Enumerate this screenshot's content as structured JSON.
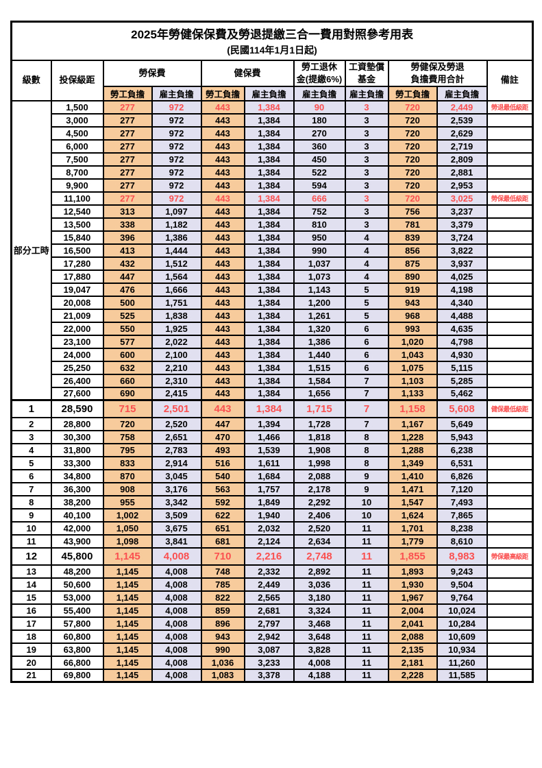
{
  "title": "2025年勞健保保費及勞退提繳三合一費用對照參考用表",
  "subtitle": "(民國114年1月1日起)",
  "columns": {
    "level": "級數",
    "bracket": "投保級距",
    "labor_insurance": "勞保費",
    "health_insurance": "健保費",
    "pension_line1": "勞工退休",
    "pension_line2": "金(提繳6%)",
    "wage_fund_line1": "工資墊償",
    "wage_fund_line2": "基金",
    "total_line1": "勞健保及勞退",
    "total_line2": "負擔費用合計",
    "remark": "備註",
    "employee_burden": "勞工負擔",
    "employer_burden": "雇主負擔"
  },
  "sub_headers": [
    "勞工負擔",
    "雇主負擔",
    "勞工負擔",
    "雇主負擔",
    "雇主負擔",
    "雇主負擔",
    "勞工負擔",
    "雇主負擔"
  ],
  "part_time_label": "部分工時",
  "part_time_rowspan": 23,
  "colors": {
    "employee_bg": "#F8CB9C",
    "employer_bg": "#E1E0F0",
    "highlight_text": "#FA5050",
    "border": "#000000"
  },
  "rows": [
    {
      "level": "",
      "bracket": "1,500",
      "values": [
        "277",
        "972",
        "443",
        "1,384",
        "90",
        "3",
        "720",
        "2,449"
      ],
      "note": "勞退最低級距",
      "style": "red"
    },
    {
      "level": "",
      "bracket": "3,000",
      "values": [
        "277",
        "972",
        "443",
        "1,384",
        "180",
        "3",
        "720",
        "2,539"
      ],
      "note": "",
      "style": ""
    },
    {
      "level": "",
      "bracket": "4,500",
      "values": [
        "277",
        "972",
        "443",
        "1,384",
        "270",
        "3",
        "720",
        "2,629"
      ],
      "note": "",
      "style": ""
    },
    {
      "level": "",
      "bracket": "6,000",
      "values": [
        "277",
        "972",
        "443",
        "1,384",
        "360",
        "3",
        "720",
        "2,719"
      ],
      "note": "",
      "style": ""
    },
    {
      "level": "",
      "bracket": "7,500",
      "values": [
        "277",
        "972",
        "443",
        "1,384",
        "450",
        "3",
        "720",
        "2,809"
      ],
      "note": "",
      "style": ""
    },
    {
      "level": "",
      "bracket": "8,700",
      "values": [
        "277",
        "972",
        "443",
        "1,384",
        "522",
        "3",
        "720",
        "2,881"
      ],
      "note": "",
      "style": ""
    },
    {
      "level": "",
      "bracket": "9,900",
      "values": [
        "277",
        "972",
        "443",
        "1,384",
        "594",
        "3",
        "720",
        "2,953"
      ],
      "note": "",
      "style": ""
    },
    {
      "level": "",
      "bracket": "11,100",
      "values": [
        "277",
        "972",
        "443",
        "1,384",
        "666",
        "3",
        "720",
        "3,025"
      ],
      "note": "勞保最低級距",
      "style": "red"
    },
    {
      "level": "",
      "bracket": "12,540",
      "values": [
        "313",
        "1,097",
        "443",
        "1,384",
        "752",
        "3",
        "756",
        "3,237"
      ],
      "note": "",
      "style": ""
    },
    {
      "level": "",
      "bracket": "13,500",
      "values": [
        "338",
        "1,182",
        "443",
        "1,384",
        "810",
        "3",
        "781",
        "3,379"
      ],
      "note": "",
      "style": ""
    },
    {
      "level": "",
      "bracket": "15,840",
      "values": [
        "396",
        "1,386",
        "443",
        "1,384",
        "950",
        "4",
        "839",
        "3,724"
      ],
      "note": "",
      "style": ""
    },
    {
      "level": "",
      "bracket": "16,500",
      "values": [
        "413",
        "1,444",
        "443",
        "1,384",
        "990",
        "4",
        "856",
        "3,822"
      ],
      "note": "",
      "style": ""
    },
    {
      "level": "",
      "bracket": "17,280",
      "values": [
        "432",
        "1,512",
        "443",
        "1,384",
        "1,037",
        "4",
        "875",
        "3,937"
      ],
      "note": "",
      "style": ""
    },
    {
      "level": "",
      "bracket": "17,880",
      "values": [
        "447",
        "1,564",
        "443",
        "1,384",
        "1,073",
        "4",
        "890",
        "4,025"
      ],
      "note": "",
      "style": ""
    },
    {
      "level": "",
      "bracket": "19,047",
      "values": [
        "476",
        "1,666",
        "443",
        "1,384",
        "1,143",
        "5",
        "919",
        "4,198"
      ],
      "note": "",
      "style": ""
    },
    {
      "level": "",
      "bracket": "20,008",
      "values": [
        "500",
        "1,751",
        "443",
        "1,384",
        "1,200",
        "5",
        "943",
        "4,340"
      ],
      "note": "",
      "style": ""
    },
    {
      "level": "",
      "bracket": "21,009",
      "values": [
        "525",
        "1,838",
        "443",
        "1,384",
        "1,261",
        "5",
        "968",
        "4,488"
      ],
      "note": "",
      "style": ""
    },
    {
      "level": "",
      "bracket": "22,000",
      "values": [
        "550",
        "1,925",
        "443",
        "1,384",
        "1,320",
        "6",
        "993",
        "4,635"
      ],
      "note": "",
      "style": ""
    },
    {
      "level": "",
      "bracket": "23,100",
      "values": [
        "577",
        "2,022",
        "443",
        "1,384",
        "1,386",
        "6",
        "1,020",
        "4,798"
      ],
      "note": "",
      "style": ""
    },
    {
      "level": "",
      "bracket": "24,000",
      "values": [
        "600",
        "2,100",
        "443",
        "1,384",
        "1,440",
        "6",
        "1,043",
        "4,930"
      ],
      "note": "",
      "style": ""
    },
    {
      "level": "",
      "bracket": "25,250",
      "values": [
        "632",
        "2,210",
        "443",
        "1,384",
        "1,515",
        "6",
        "1,075",
        "5,115"
      ],
      "note": "",
      "style": ""
    },
    {
      "level": "",
      "bracket": "26,400",
      "values": [
        "660",
        "2,310",
        "443",
        "1,384",
        "1,584",
        "7",
        "1,103",
        "5,285"
      ],
      "note": "",
      "style": ""
    },
    {
      "level": "",
      "bracket": "27,600",
      "values": [
        "690",
        "2,415",
        "443",
        "1,384",
        "1,656",
        "7",
        "1,133",
        "5,462"
      ],
      "note": "",
      "style": ""
    },
    {
      "level": "1",
      "bracket": "28,590",
      "values": [
        "715",
        "2,501",
        "443",
        "1,384",
        "1,715",
        "7",
        "1,158",
        "5,608"
      ],
      "note": "健保最低級距",
      "style": "red-big",
      "sep": true
    },
    {
      "level": "2",
      "bracket": "28,800",
      "values": [
        "720",
        "2,520",
        "447",
        "1,394",
        "1,728",
        "7",
        "1,167",
        "5,649"
      ],
      "note": "",
      "style": ""
    },
    {
      "level": "3",
      "bracket": "30,300",
      "values": [
        "758",
        "2,651",
        "470",
        "1,466",
        "1,818",
        "8",
        "1,228",
        "5,943"
      ],
      "note": "",
      "style": ""
    },
    {
      "level": "4",
      "bracket": "31,800",
      "values": [
        "795",
        "2,783",
        "493",
        "1,539",
        "1,908",
        "8",
        "1,288",
        "6,238"
      ],
      "note": "",
      "style": ""
    },
    {
      "level": "5",
      "bracket": "33,300",
      "values": [
        "833",
        "2,914",
        "516",
        "1,611",
        "1,998",
        "8",
        "1,349",
        "6,531"
      ],
      "note": "",
      "style": ""
    },
    {
      "level": "6",
      "bracket": "34,800",
      "values": [
        "870",
        "3,045",
        "540",
        "1,684",
        "2,088",
        "9",
        "1,410",
        "6,826"
      ],
      "note": "",
      "style": ""
    },
    {
      "level": "7",
      "bracket": "36,300",
      "values": [
        "908",
        "3,176",
        "563",
        "1,757",
        "2,178",
        "9",
        "1,471",
        "7,120"
      ],
      "note": "",
      "style": ""
    },
    {
      "level": "8",
      "bracket": "38,200",
      "values": [
        "955",
        "3,342",
        "592",
        "1,849",
        "2,292",
        "10",
        "1,547",
        "7,493"
      ],
      "note": "",
      "style": ""
    },
    {
      "level": "9",
      "bracket": "40,100",
      "values": [
        "1,002",
        "3,509",
        "622",
        "1,940",
        "2,406",
        "10",
        "1,624",
        "7,865"
      ],
      "note": "",
      "style": ""
    },
    {
      "level": "10",
      "bracket": "42,000",
      "values": [
        "1,050",
        "3,675",
        "651",
        "2,032",
        "2,520",
        "11",
        "1,701",
        "8,238"
      ],
      "note": "",
      "style": ""
    },
    {
      "level": "11",
      "bracket": "43,900",
      "values": [
        "1,098",
        "3,841",
        "681",
        "2,124",
        "2,634",
        "11",
        "1,779",
        "8,610"
      ],
      "note": "",
      "style": ""
    },
    {
      "level": "12",
      "bracket": "45,800",
      "values": [
        "1,145",
        "4,008",
        "710",
        "2,216",
        "2,748",
        "11",
        "1,855",
        "8,983"
      ],
      "note": "勞保最高級距",
      "style": "red-big"
    },
    {
      "level": "13",
      "bracket": "48,200",
      "values": [
        "1,145",
        "4,008",
        "748",
        "2,332",
        "2,892",
        "11",
        "1,893",
        "9,243"
      ],
      "note": "",
      "style": ""
    },
    {
      "level": "14",
      "bracket": "50,600",
      "values": [
        "1,145",
        "4,008",
        "785",
        "2,449",
        "3,036",
        "11",
        "1,930",
        "9,504"
      ],
      "note": "",
      "style": ""
    },
    {
      "level": "15",
      "bracket": "53,000",
      "values": [
        "1,145",
        "4,008",
        "822",
        "2,565",
        "3,180",
        "11",
        "1,967",
        "9,764"
      ],
      "note": "",
      "style": ""
    },
    {
      "level": "16",
      "bracket": "55,400",
      "values": [
        "1,145",
        "4,008",
        "859",
        "2,681",
        "3,324",
        "11",
        "2,004",
        "10,024"
      ],
      "note": "",
      "style": ""
    },
    {
      "level": "17",
      "bracket": "57,800",
      "values": [
        "1,145",
        "4,008",
        "896",
        "2,797",
        "3,468",
        "11",
        "2,041",
        "10,284"
      ],
      "note": "",
      "style": ""
    },
    {
      "level": "18",
      "bracket": "60,800",
      "values": [
        "1,145",
        "4,008",
        "943",
        "2,942",
        "3,648",
        "11",
        "2,088",
        "10,609"
      ],
      "note": "",
      "style": ""
    },
    {
      "level": "19",
      "bracket": "63,800",
      "values": [
        "1,145",
        "4,008",
        "990",
        "3,087",
        "3,828",
        "11",
        "2,135",
        "10,934"
      ],
      "note": "",
      "style": ""
    },
    {
      "level": "20",
      "bracket": "66,800",
      "values": [
        "1,145",
        "4,008",
        "1,036",
        "3,233",
        "4,008",
        "11",
        "2,181",
        "11,260"
      ],
      "note": "",
      "style": ""
    },
    {
      "level": "21",
      "bracket": "69,800",
      "values": [
        "1,145",
        "4,008",
        "1,083",
        "3,378",
        "4,188",
        "11",
        "2,228",
        "11,585"
      ],
      "note": "",
      "style": ""
    }
  ]
}
